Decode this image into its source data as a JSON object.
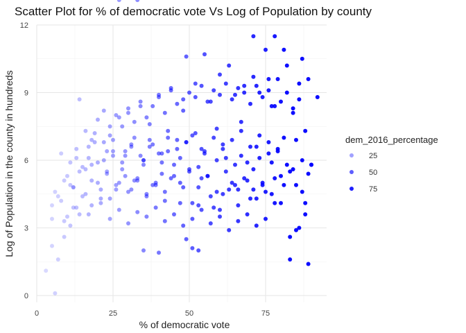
{
  "chart_data": {
    "type": "scatter",
    "title": "Scatter Plot for % of democratic vote Vs Log of Population by county",
    "xlabel": "% of democratic vote",
    "ylabel": "Log of Population in the county in hundreds",
    "xlim": [
      0,
      95
    ],
    "ylim": [
      -0.3,
      12
    ],
    "xticks": [
      0,
      25,
      50,
      75
    ],
    "yticks": [
      0,
      3,
      6,
      9,
      12
    ],
    "grid": true,
    "point_color": "#0000FF",
    "legend": {
      "title": "dem_2016_percentage",
      "position": "right",
      "items": [
        {
          "label": "25",
          "value": 25
        },
        {
          "label": "50",
          "value": 50
        },
        {
          "label": "75",
          "value": 75
        }
      ]
    },
    "points_x": [
      3,
      5,
      6,
      5,
      7,
      8,
      9,
      10,
      11,
      12,
      13,
      14,
      15,
      16,
      17,
      18,
      19,
      20,
      21,
      22,
      23,
      24,
      25,
      26,
      27,
      28,
      29,
      30,
      31,
      32,
      33,
      34,
      35,
      36,
      37,
      38,
      39,
      40,
      41,
      42,
      43,
      44,
      45,
      46,
      47,
      48,
      49,
      50,
      51,
      52,
      53,
      54,
      55,
      56,
      57,
      58,
      59,
      60,
      61,
      62,
      63,
      64,
      65,
      66,
      67,
      68,
      69,
      70,
      71,
      72,
      73,
      74,
      75,
      76,
      77,
      78,
      79,
      80,
      81,
      82,
      83,
      84,
      85,
      86,
      87,
      88,
      89,
      90,
      92,
      14,
      16,
      18,
      20,
      22,
      24,
      26,
      28,
      30,
      32,
      34,
      36,
      38,
      40,
      42,
      44,
      46,
      48,
      50,
      52,
      54,
      56,
      58,
      60,
      62,
      64,
      66,
      68,
      70,
      72,
      74,
      76,
      78,
      80,
      82,
      84,
      86,
      88,
      10,
      12,
      15,
      18,
      21,
      24,
      27,
      30,
      33,
      36,
      39,
      42,
      45,
      48,
      51,
      54,
      57,
      60,
      63,
      66,
      69,
      72,
      75,
      78,
      81,
      84,
      87,
      90,
      8,
      11,
      13,
      17,
      19,
      23,
      25,
      29,
      31,
      35,
      37,
      41,
      43,
      47,
      49,
      53,
      55,
      59,
      61,
      65,
      67,
      71,
      73,
      77,
      79,
      83,
      85,
      89,
      6,
      9,
      12,
      16,
      20,
      23,
      26,
      29,
      32,
      35,
      38,
      41,
      44,
      47,
      50,
      53,
      56,
      59,
      62,
      65,
      68,
      71,
      74,
      77,
      80,
      83,
      86,
      5,
      7,
      11,
      14,
      18,
      22,
      25,
      28,
      31,
      34,
      37,
      40,
      43,
      46,
      49,
      52,
      55,
      58,
      61,
      64,
      67,
      70,
      73,
      76,
      79,
      82,
      85,
      88,
      9,
      13,
      17,
      21,
      24,
      27,
      30,
      33,
      36,
      39,
      42,
      45,
      48,
      51,
      54,
      57,
      60,
      63,
      66,
      69,
      72,
      75,
      78,
      81,
      71,
      76,
      87,
      89,
      53,
      51,
      40,
      35,
      49,
      33,
      27
    ],
    "points_y": [
      1.1,
      2.2,
      0.1,
      3.4,
      1.6,
      4.2,
      2.6,
      5.3,
      3.1,
      4.8,
      6.1,
      3.6,
      5.7,
      4.5,
      6.6,
      5.1,
      7.2,
      5.9,
      4.3,
      6.8,
      5.4,
      7.5,
      6.2,
      4.9,
      7.9,
      5.6,
      6.4,
      8.1,
      4.7,
      7.0,
      5.2,
      8.4,
      6.0,
      4.4,
      7.6,
      6.7,
      5.0,
      8.8,
      6.3,
      4.6,
      7.3,
      9.1,
      5.8,
      6.9,
      4.1,
      8.2,
      10.6,
      5.5,
      7.1,
      9.4,
      4.0,
      6.5,
      10.7,
      5.3,
      8.6,
      3.9,
      7.4,
      9.8,
      4.5,
      6.1,
      10.2,
      5.0,
      8.9,
      4.7,
      7.7,
      9.3,
      5.9,
      4.3,
      11.5,
      6.6,
      9.0,
      4.9,
      10.9,
      6.3,
      8.4,
      5.2,
      9.6,
      4.1,
      7.0,
      10.2,
      5.5,
      8.1,
      6.9,
      9.4,
      4.6,
      7.3,
      9.6,
      5.8,
      8.8,
      8.7,
      7.3,
      6.9,
      7.8,
      8.2,
      7.1,
      8.0,
      7.5,
      8.3,
      7.7,
      8.6,
      7.9,
      8.4,
      8.9,
      8.1,
      9.2,
      8.5,
      8.7,
      9.0,
      8.8,
      9.3,
      8.6,
      9.1,
      8.9,
      9.4,
      8.7,
      9.2,
      9.0,
      8.5,
      9.3,
      8.8,
      9.1,
      8.4,
      8.6,
      9.0,
      8.3,
      8.7,
      4.1,
      3.5,
      3.9,
      4.4,
      4.0,
      4.7,
      4.3,
      5.0,
      4.6,
      5.1,
      4.5,
      4.9,
      4.2,
      5.3,
      4.8,
      4.1,
      5.2,
      4.4,
      3.8,
      4.7,
      4.0,
      5.1,
      4.3,
      4.6,
      4.1,
      4.9,
      5.6,
      6.0,
      5.8,
      6.3,
      5.9,
      6.5,
      6.1,
      6.8,
      6.4,
      6.9,
      6.2,
      6.7,
      6.0,
      6.6,
      5.9,
      6.4,
      6.1,
      6.8,
      5.7,
      6.3,
      6.0,
      6.5,
      5.8,
      6.2,
      5.6,
      6.1,
      5.9,
      6.4,
      2.6,
      4.9,
      5.4,
      4.6,
      5.1,
      4.8,
      5.6,
      5.0,
      5.5,
      4.7,
      5.3,
      5.1,
      5.8,
      4.9,
      5.4,
      5.2,
      5.0,
      5.6,
      4.8,
      5.3,
      4.6,
      5.5,
      4.9,
      5.2,
      4.7,
      5.0,
      4.5,
      5.3,
      1.6,
      3.0,
      4.0,
      4.4,
      4.9,
      5.5,
      5.8,
      6.0,
      6.4,
      5.9,
      6.6,
      6.2,
      6.9,
      6.3,
      7.0,
      6.5,
      6.8,
      7.2,
      6.4,
      7.0,
      6.7,
      6.9,
      7.3,
      6.6,
      7.1,
      6.8,
      6.5,
      5.8,
      2.9,
      3.6,
      3.3,
      3.9,
      3.6,
      4.1,
      3.4,
      3.8,
      3.2,
      3.7,
      3.5,
      3.9,
      3.3,
      3.6,
      3.1,
      3.4,
      3.8,
      3.2,
      3.5,
      2.9,
      3.3,
      3.6,
      3.1,
      3.4,
      11.5,
      10.9,
      9.7,
      9.6,
      10.5,
      1.4,
      2.0,
      2.1,
      1.9,
      2.0,
      2.5
    ],
    "points_v": [
      3,
      5,
      6,
      5,
      7,
      8,
      9,
      10,
      11,
      12,
      13,
      14,
      15,
      16,
      17,
      18,
      19,
      20,
      21,
      22,
      23,
      24,
      25,
      26,
      27,
      28,
      29,
      30,
      31,
      32,
      33,
      34,
      35,
      36,
      37,
      38,
      39,
      40,
      41,
      42,
      43,
      44,
      45,
      46,
      47,
      48,
      49,
      50,
      51,
      52,
      53,
      54,
      55,
      56,
      57,
      58,
      59,
      60,
      61,
      62,
      63,
      64,
      65,
      66,
      67,
      68,
      69,
      70,
      71,
      72,
      73,
      74,
      75,
      76,
      77,
      78,
      79,
      80,
      81,
      82,
      83,
      84,
      85,
      86,
      87,
      88,
      89,
      90,
      92,
      14,
      16,
      18,
      20,
      22,
      24,
      26,
      28,
      30,
      32,
      34,
      36,
      38,
      40,
      42,
      44,
      46,
      48,
      50,
      52,
      54,
      56,
      58,
      60,
      62,
      64,
      66,
      68,
      70,
      72,
      74,
      76,
      78,
      80,
      82,
      84,
      86,
      88,
      10,
      12,
      15,
      18,
      21,
      24,
      27,
      30,
      33,
      36,
      39,
      42,
      45,
      48,
      51,
      54,
      57,
      60,
      63,
      66,
      69,
      72,
      75,
      78,
      81,
      84,
      87,
      90,
      8,
      11,
      13,
      17,
      19,
      23,
      25,
      29,
      31,
      35,
      37,
      41,
      43,
      47,
      49,
      53,
      55,
      59,
      61,
      65,
      67,
      71,
      73,
      77,
      79,
      83,
      85,
      89,
      6,
      9,
      12,
      16,
      20,
      23,
      26,
      29,
      32,
      35,
      38,
      41,
      44,
      47,
      50,
      53,
      56,
      59,
      62,
      65,
      68,
      71,
      74,
      77,
      80,
      83,
      86,
      5,
      7,
      11,
      14,
      18,
      22,
      25,
      28,
      31,
      34,
      37,
      40,
      43,
      46,
      49,
      52,
      55,
      58,
      61,
      64,
      67,
      70,
      73,
      76,
      79,
      82,
      85,
      88,
      9,
      13,
      17,
      21,
      24,
      27,
      30,
      33,
      36,
      39,
      42,
      45,
      48,
      51,
      54,
      57,
      60,
      63,
      66,
      69,
      72,
      75,
      78,
      81,
      71,
      76,
      87,
      89,
      53,
      51,
      40,
      35,
      49,
      33,
      27
    ]
  }
}
